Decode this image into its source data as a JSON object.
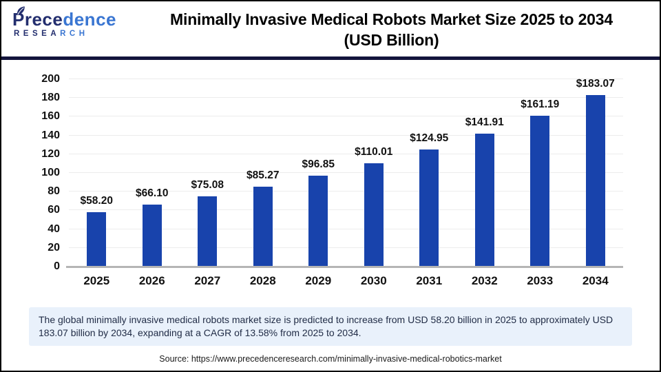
{
  "header": {
    "logo": {
      "word_dark": "Prece",
      "word_light": "dence",
      "sub_dark": "RESEA",
      "sub_light": "RCH"
    },
    "title_line1": "Minimally Invasive Medical Robots Market Size 2025 to 2034",
    "title_line2": "(USD Billion)"
  },
  "chart_data": {
    "type": "bar",
    "title": "Minimally Invasive Medical Robots Market Size 2025 to 2034 (USD Billion)",
    "categories": [
      "2025",
      "2026",
      "2027",
      "2028",
      "2029",
      "2030",
      "2031",
      "2032",
      "2033",
      "2034"
    ],
    "values": [
      58.2,
      66.1,
      75.08,
      85.27,
      96.85,
      110.01,
      124.95,
      141.91,
      161.19,
      183.07
    ],
    "labels": [
      "$58.20",
      "$66.10",
      "$75.08",
      "$85.27",
      "$96.85",
      "$110.01",
      "$124.95",
      "$141.91",
      "$161.19",
      "$183.07"
    ],
    "xlabel": "",
    "ylabel": "",
    "ylim": [
      0,
      200
    ],
    "yticks": [
      0,
      20,
      40,
      60,
      80,
      100,
      120,
      140,
      160,
      180,
      200
    ],
    "grid": true,
    "legend_position": "none",
    "bar_color": "#1843ac"
  },
  "note": {
    "text": "The global minimally invasive medical robots market size is predicted to increase from USD 58.20 billion in 2025 to approximately USD 183.07 billion by 2034, expanding at a CAGR of 13.58% from 2025 to 2034."
  },
  "source": {
    "text": "Source: https://www.precedenceresearch.com/minimally-invasive-medical-robotics-market"
  },
  "colors": {
    "bar": "#1843ac",
    "divider": "#13143c",
    "note_background": "#e9f1fb",
    "logo_dark": "#232e6e",
    "logo_light": "#3a76d2"
  }
}
